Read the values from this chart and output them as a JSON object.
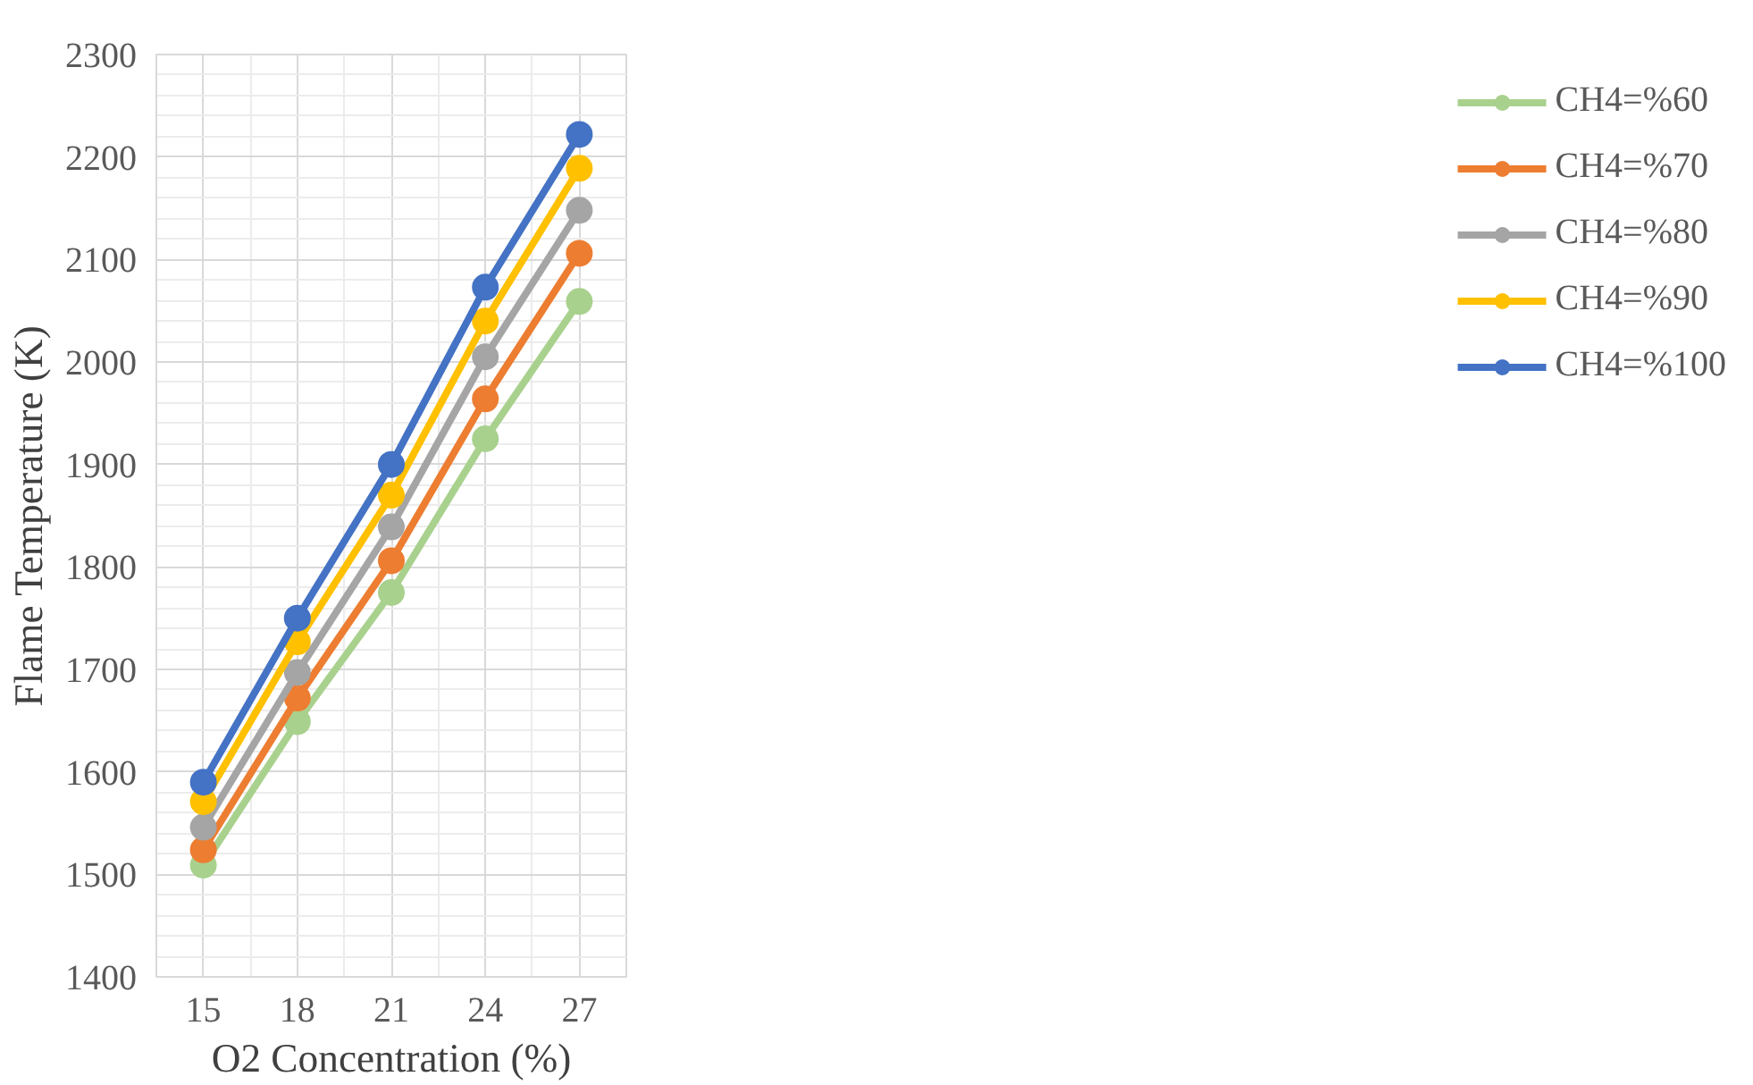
{
  "chart_data": {
    "type": "line",
    "xlabel": "O2 Concentration (%)",
    "ylabel": "Flame Temperature (K)",
    "x": [
      15,
      18,
      21,
      24,
      27
    ],
    "xlim": [
      13.5,
      28.5
    ],
    "xticks": [
      15,
      18,
      21,
      24,
      27
    ],
    "ylim": [
      1400,
      2300
    ],
    "yticks": [
      1400,
      1500,
      1600,
      1700,
      1800,
      1900,
      2000,
      2100,
      2200,
      2300
    ],
    "grid": true,
    "legend": "right",
    "marker": "circle",
    "line_style": "solid",
    "series": [
      {
        "name": "CH4=%60",
        "color": "#a9d18e",
        "values": [
          1509,
          1649,
          1775,
          1925,
          2059
        ]
      },
      {
        "name": "CH4=%70",
        "color": "#ed7d31",
        "values": [
          1524,
          1672,
          1806,
          1964,
          2106
        ]
      },
      {
        "name": "CH4=%80",
        "color": "#a5a5a5",
        "values": [
          1546,
          1697,
          1839,
          2005,
          2148
        ]
      },
      {
        "name": "CH4=%90",
        "color": "#ffc000",
        "values": [
          1571,
          1727,
          1870,
          2040,
          2189
        ]
      },
      {
        "name": "CH4=%100",
        "color": "#4472c4",
        "values": [
          1590,
          1750,
          1900,
          2073,
          2222
        ]
      }
    ]
  }
}
